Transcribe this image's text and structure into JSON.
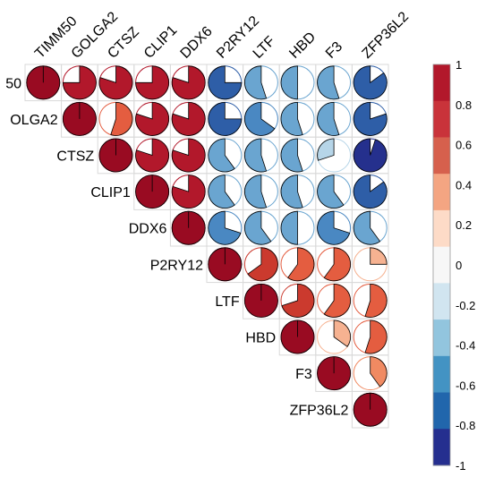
{
  "chart_data": {
    "type": "correlation-pie",
    "layout": "upper-triangle",
    "variables": [
      "TIMM50",
      "GOLGA2",
      "CTSZ",
      "CLIP1",
      "DDX6",
      "P2RY12",
      "LTF",
      "HBD",
      "F3",
      "ZFP36L2"
    ],
    "row_labels": [
      "50",
      "OLGA2",
      "CTSZ",
      "CLIP1",
      "DDX6",
      "P2RY12",
      "LTF",
      "HBD",
      "F3",
      "ZFP36L2"
    ],
    "col_labels": [
      "TIMM50",
      "GOLGA2",
      "CTSZ",
      "CLIP1",
      "DDX6",
      "P2RY12",
      "LTF",
      "HBD",
      "F3",
      "ZFP36L2"
    ],
    "matrix": [
      [
        1,
        0.75,
        0.8,
        0.75,
        0.8,
        -0.75,
        -0.55,
        -0.5,
        -0.55,
        -0.85
      ],
      [
        0.75,
        1,
        0.55,
        0.8,
        0.8,
        -0.75,
        -0.65,
        -0.55,
        -0.55,
        -0.8
      ],
      [
        0.8,
        0.55,
        1,
        0.8,
        0.8,
        -0.6,
        -0.55,
        -0.55,
        -0.3,
        -0.95
      ],
      [
        0.75,
        0.8,
        0.8,
        1,
        0.8,
        -0.6,
        -0.55,
        -0.55,
        -0.6,
        -0.85
      ],
      [
        0.8,
        0.8,
        0.8,
        0.8,
        1,
        -0.7,
        -0.6,
        -0.5,
        -0.7,
        -0.6
      ],
      [
        -0.75,
        -0.75,
        -0.6,
        -0.6,
        -0.7,
        1,
        0.65,
        0.6,
        0.6,
        0.25
      ],
      [
        -0.55,
        -0.65,
        -0.55,
        -0.55,
        -0.6,
        0.65,
        1,
        0.7,
        0.6,
        0.55
      ],
      [
        -0.5,
        -0.55,
        -0.55,
        -0.55,
        -0.5,
        0.6,
        0.7,
        1,
        0.35,
        0.55
      ],
      [
        -0.55,
        -0.55,
        -0.3,
        -0.6,
        -0.7,
        0.6,
        0.6,
        0.35,
        1,
        0.4
      ],
      [
        -0.85,
        -0.8,
        -0.95,
        -0.85,
        -0.6,
        0.25,
        0.55,
        0.55,
        0.4,
        1
      ]
    ],
    "colorbar": {
      "ticks": [
        "1",
        "0.8",
        "0.6",
        "0.4",
        "0.2",
        "0",
        "-0.2",
        "-0.4",
        "-0.6",
        "-0.8",
        "-1"
      ],
      "range": [
        -1,
        1
      ],
      "colors_top_to_bottom": [
        "#b2182b",
        "#c9333a",
        "#d6604d",
        "#f4a582",
        "#fddbc7",
        "#f7f7f7",
        "#d1e5f0",
        "#92c5de",
        "#4393c3",
        "#2166ac",
        "#252f8f"
      ]
    },
    "palette": {
      "pos": [
        "#fdeee4",
        "#fbd5bf",
        "#f6b291",
        "#f08a62",
        "#e45d40",
        "#cb3a2e",
        "#b2182b",
        "#990b22"
      ],
      "neg": [
        "#edf5f9",
        "#d5e7f1",
        "#b6d5e8",
        "#8fbfdd",
        "#6aa5d0",
        "#4a88c2",
        "#2e5ea7",
        "#25308d"
      ]
    },
    "grid": true
  }
}
